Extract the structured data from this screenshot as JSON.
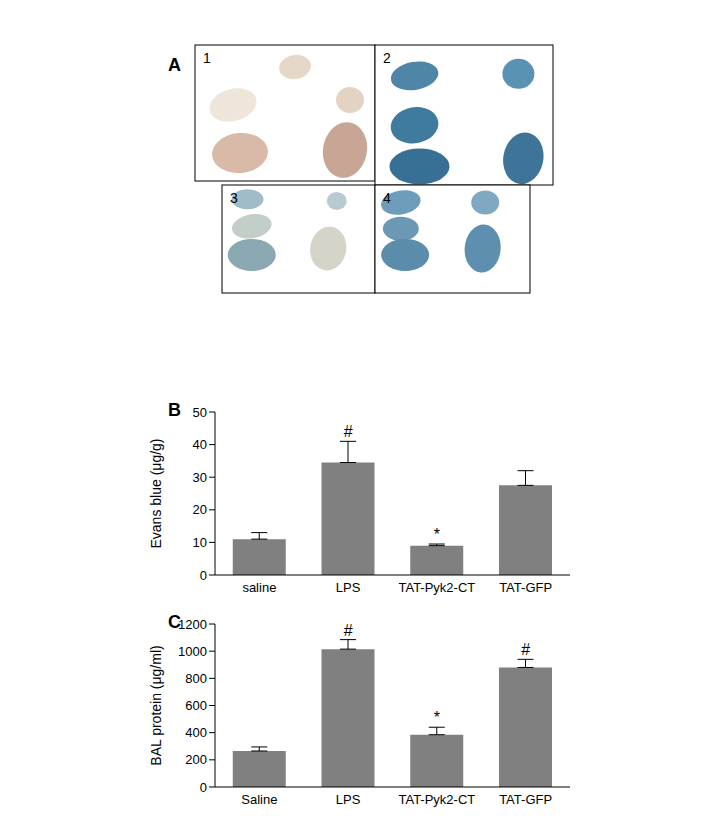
{
  "photo_panel": {
    "label": "A",
    "images": [
      "1",
      "2",
      "3",
      "4"
    ]
  },
  "chart_data": [
    {
      "type": "bar",
      "title": "B",
      "y_label": "Evans blue (μg/g)",
      "categories": [
        "saline",
        "LPS",
        "TAT-Pyk2-CT",
        "TAT-GFP"
      ],
      "values": [
        11,
        34.5,
        9,
        27.5
      ],
      "errors": [
        2,
        6.5,
        0.5,
        4.5
      ],
      "annotations": [
        null,
        "#",
        "*",
        null
      ],
      "color": "#808080",
      "ylim": [
        0,
        50
      ],
      "yticks": [
        0,
        10,
        20,
        30,
        40,
        50
      ],
      "grid": false
    },
    {
      "type": "bar",
      "title": "C",
      "y_label": "BAL protein (μg/ml)",
      "categories": [
        "Saline",
        "LPS",
        "TAT-Pyk2-CT",
        "TAT-GFP"
      ],
      "values": [
        265,
        1015,
        385,
        880
      ],
      "errors": [
        30,
        70,
        55,
        60
      ],
      "annotations": [
        null,
        "#",
        "*",
        "#"
      ],
      "color": "#808080",
      "ylim": [
        0,
        1200
      ],
      "yticks": [
        0,
        200,
        400,
        600,
        800,
        1000,
        1200
      ],
      "grid": false
    }
  ]
}
